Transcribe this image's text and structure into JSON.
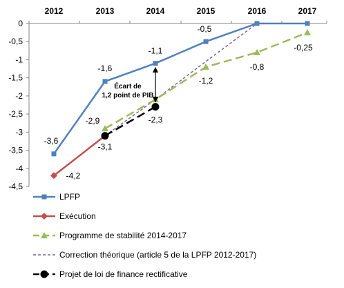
{
  "chart_data": {
    "type": "line",
    "x": [
      "2012",
      "2013",
      "2014",
      "2015",
      "2016",
      "2017"
    ],
    "ylim": [
      -4.5,
      0
    ],
    "yticks": [
      "0",
      "-0,5",
      "-1",
      "-1,5",
      "-2",
      "-2,5",
      "-3",
      "-3,5",
      "-4",
      "-4,5"
    ],
    "grid": false,
    "legend_position": "bottom",
    "series": [
      {
        "name": "LPFP",
        "color": "#4f81bd",
        "marker": "square",
        "style": "solid",
        "points": [
          [
            "2012",
            -3.6
          ],
          [
            "2013",
            -1.6
          ],
          [
            "2014",
            -1.1
          ],
          [
            "2015",
            -0.5
          ],
          [
            "2016",
            0
          ],
          [
            "2017",
            0
          ]
        ],
        "labels": [
          {
            "x": "2012",
            "y": -3.6,
            "text": "-3,6"
          },
          {
            "x": "2013",
            "y": -1.6,
            "text": "-1,6"
          },
          {
            "x": "2014",
            "y": -1.1,
            "text": "-1,1"
          },
          {
            "x": "2015",
            "y": -0.5,
            "text": "-0,5"
          }
        ]
      },
      {
        "name": "Exécution",
        "color": "#c0504d",
        "marker": "diamond",
        "style": "solid",
        "points": [
          [
            "2012",
            -4.2
          ],
          [
            "2013",
            -3.1
          ]
        ],
        "labels": [
          {
            "x": "2012",
            "y": -4.2,
            "text": "-4,2"
          }
        ]
      },
      {
        "name": "Programme de stabilité 2014-2017",
        "color": "#9bbb59",
        "marker": "triangle",
        "style": "dashed",
        "points": [
          [
            "2013",
            -2.9
          ],
          [
            "2014",
            -2.1
          ],
          [
            "2015",
            -1.2
          ],
          [
            "2016",
            -0.8
          ],
          [
            "2017",
            -0.25
          ]
        ],
        "labels": [
          {
            "x": "2013",
            "y": -2.9,
            "text": "-2,9"
          },
          {
            "x": "2015",
            "y": -1.2,
            "text": "-1,2"
          },
          {
            "x": "2016",
            "y": -0.8,
            "text": "-0,8"
          },
          {
            "x": "2017",
            "y": -0.25,
            "text": "-0,25"
          }
        ]
      },
      {
        "name": "Correction théorique (article 5 de la LPFP 2012-2017)",
        "color": "#8064a2",
        "marker": "none",
        "style": "dotted",
        "points": [
          [
            "2013",
            -3.1
          ],
          [
            "2014",
            -2.1
          ],
          [
            "2015",
            -1.05
          ],
          [
            "2016",
            0
          ]
        ],
        "labels": []
      },
      {
        "name": "Projet de loi de finance rectificative",
        "color": "#000000",
        "marker": "circle",
        "style": "dashed",
        "points": [
          [
            "2013",
            -3.1
          ],
          [
            "2014",
            -2.3
          ]
        ],
        "labels": [
          {
            "x": "2013",
            "y": -3.1,
            "text": "-3,1"
          },
          {
            "x": "2014",
            "y": -2.3,
            "text": "-2,3"
          }
        ]
      }
    ],
    "annotations": [
      {
        "text_lines": [
          "Écart de",
          "1,2 point de PIB"
        ],
        "x": "2014",
        "y_from": -1.1,
        "y_to": -2.3
      }
    ]
  }
}
